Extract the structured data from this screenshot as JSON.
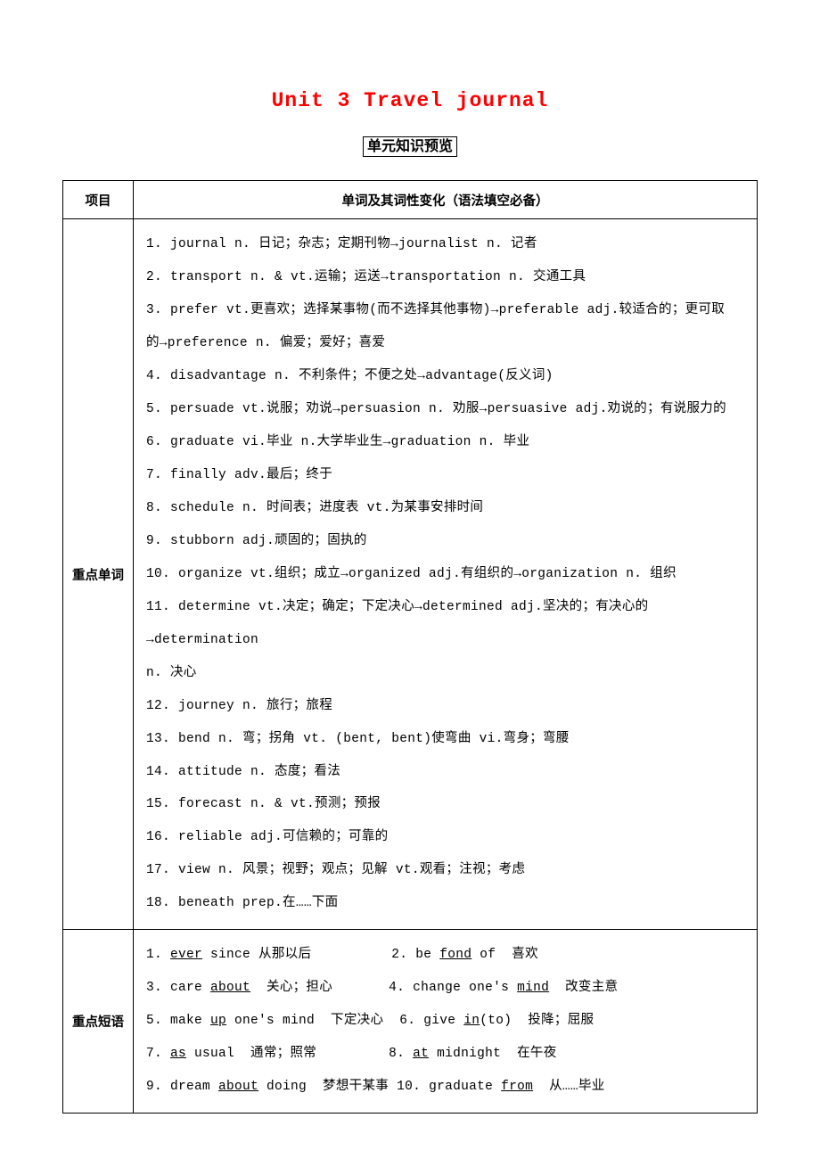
{
  "title": "Unit 3  Travel journal",
  "subtitle": "单元知识预览",
  "header": {
    "col1": "项目",
    "col2": "单词及其词性变化（语法填空必备）"
  },
  "vocab": {
    "label": "重点单词",
    "items": [
      "1. journal n. 日记；杂志；定期刊物→journalist n. 记者",
      "2. transport n. & vt.运输；运送→transportation n. 交通工具",
      "3. prefer vt.更喜欢；选择某事物(而不选择其他事物)→preferable adj.较适合的；更可取",
      "的→preference n. 偏爱；爱好；喜爱",
      "4. disadvantage n. 不利条件；不便之处→advantage(反义词)",
      "5. persuade vt.说服；劝说→persuasion n. 劝服→persuasive adj.劝说的；有说服力的",
      "6. graduate vi.毕业 n.大学毕业生→graduation n. 毕业",
      "7. finally adv.最后；终于",
      "8. schedule n. 时间表；进度表 vt.为某事安排时间",
      "9. stubborn adj.顽固的；固执的",
      "10. organize vt.组织；成立→organized adj.有组织的→organization n. 组织",
      "11. determine vt.决定；确定；下定决心→determined adj.坚决的；有决心的→determination",
      "n. 决心",
      "12. journey n. 旅行；旅程",
      "13. bend n. 弯；拐角 vt. (bent, bent)使弯曲 vi.弯身；弯腰",
      "14. attitude n. 态度；看法",
      "15. forecast n. & vt.预测；预报",
      "16. reliable adj.可信赖的；可靠的",
      "17. view n. 风景；视野；观点；见解 vt.观看；注视；考虑",
      "18. beneath prep.在……下面"
    ]
  },
  "phrases": {
    "label": "重点短语",
    "rows": [
      {
        "a_pre": "1. ",
        "a_u": "ever",
        "a_post": " since 从那以后",
        "b_pre": "2. be ",
        "b_u": "fond",
        "b_post": " of  喜欢",
        "gap": "          "
      },
      {
        "a_pre": "3. care ",
        "a_u": "about",
        "a_post": "  关心；担心",
        "b_pre": "4. change one's ",
        "b_u": "mind",
        "b_post": "  改变主意",
        "gap": "       "
      },
      {
        "a_pre": "5. make ",
        "a_u": "up",
        "a_post": " one's mind  下定决心",
        "b_pre": "6. give ",
        "b_u": "in",
        "b_post": "(to)  投降；屈服",
        "gap": "  "
      },
      {
        "a_pre": "7. ",
        "a_u": "as",
        "a_post": " usual  通常；照常",
        "b_pre": "8. ",
        "b_u": "at",
        "b_post": " midnight  在午夜",
        "gap": "         "
      },
      {
        "a_pre": "9. dream ",
        "a_u": "about",
        "a_post": " doing  梦想干某事",
        "b_pre": "10. graduate ",
        "b_u": "from",
        "b_post": "  从……毕业",
        "gap": " "
      }
    ]
  }
}
